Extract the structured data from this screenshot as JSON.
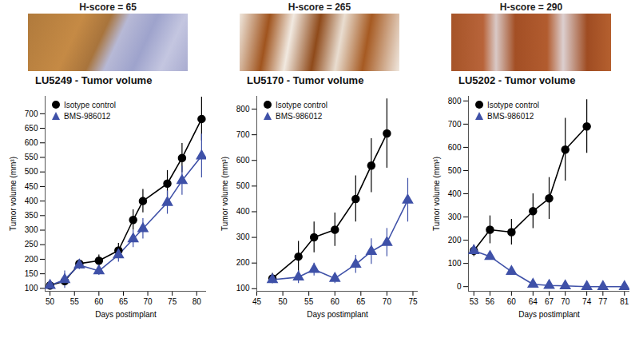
{
  "chart_data": [
    {
      "type": "line",
      "subtitle": "H-score = 65",
      "title": "LU5249 - Tumor volume",
      "x_label": "Days postimplant",
      "y_label": "Tumor volume (mm³)",
      "x": [
        50,
        53,
        56,
        60,
        64,
        67,
        69,
        74,
        77,
        81
      ],
      "xlim": [
        49,
        82
      ],
      "xticks": [
        50,
        55,
        60,
        65,
        70,
        75,
        80
      ],
      "ylim": [
        90,
        760
      ],
      "yticks": [
        100,
        150,
        200,
        250,
        300,
        350,
        400,
        450,
        500,
        550,
        600,
        650,
        700
      ],
      "grid": false,
      "legend": "top-left",
      "series": [
        {
          "name": "Isotype control",
          "color": "#000000",
          "marker": "circle",
          "values": [
            110,
            125,
            185,
            195,
            230,
            335,
            400,
            460,
            548,
            682
          ],
          "errors": [
            15,
            15,
            15,
            20,
            25,
            35,
            40,
            45,
            50,
            75
          ]
        },
        {
          "name": "BMS-986012",
          "color": "#3f51a8",
          "marker": "triangle",
          "values": [
            110,
            130,
            180,
            160,
            215,
            270,
            305,
            395,
            470,
            555
          ],
          "errors": [
            15,
            30,
            15,
            15,
            25,
            30,
            35,
            40,
            50,
            75
          ]
        }
      ]
    },
    {
      "type": "line",
      "subtitle": "H-score = 265",
      "title": "LU5170 - Tumor volume",
      "x_label": "Days postimplant",
      "y_label": "Tumor volume (mm³)",
      "x": [
        48,
        53,
        56,
        60,
        64,
        67,
        70,
        74
      ],
      "xlim": [
        45,
        76
      ],
      "xticks": [
        45,
        50,
        55,
        60,
        65,
        70,
        75
      ],
      "ylim": [
        90,
        850
      ],
      "yticks": [
        100,
        200,
        300,
        400,
        500,
        600,
        700,
        800
      ],
      "grid": false,
      "legend": "top-left",
      "series": [
        {
          "name": "Isotype control",
          "color": "#000000",
          "marker": "circle",
          "values": [
            140,
            225,
            300,
            330,
            450,
            580,
            705,
            null
          ],
          "errors": [
            20,
            60,
            60,
            65,
            90,
            105,
            135,
            null
          ]
        },
        {
          "name": "BMS-986012",
          "color": "#3f51a8",
          "marker": "triangle",
          "values": [
            135,
            145,
            175,
            140,
            195,
            245,
            280,
            445
          ],
          "errors": [
            15,
            25,
            25,
            20,
            35,
            50,
            55,
            85
          ]
        }
      ]
    },
    {
      "type": "line",
      "subtitle": "H-score = 290",
      "title": "LU5202 - Tumor volume",
      "x_label": "Days postimplant",
      "y_label": "Tumor volume (mm³)",
      "x": [
        53,
        56,
        60,
        64,
        67,
        70,
        74,
        77,
        81
      ],
      "xlim": [
        52,
        82
      ],
      "xticks": [
        53,
        56,
        60,
        64,
        67,
        70,
        74,
        77,
        81
      ],
      "ylim": [
        -20,
        820
      ],
      "yticks": [
        0,
        100,
        200,
        300,
        400,
        500,
        600,
        700,
        800
      ],
      "grid": false,
      "legend": "top-left",
      "series": [
        {
          "name": "Isotype control",
          "color": "#000000",
          "marker": "circle",
          "values": [
            155,
            245,
            235,
            325,
            380,
            590,
            690,
            null,
            null
          ],
          "errors": [
            25,
            60,
            55,
            75,
            90,
            135,
            115,
            null,
            null
          ]
        },
        {
          "name": "BMS-986012",
          "color": "#3f51a8",
          "marker": "triangle",
          "values": [
            155,
            130,
            65,
            10,
            5,
            3,
            0,
            0,
            0
          ],
          "errors": [
            20,
            10,
            10,
            5,
            3,
            2,
            1,
            1,
            1
          ]
        }
      ]
    }
  ]
}
